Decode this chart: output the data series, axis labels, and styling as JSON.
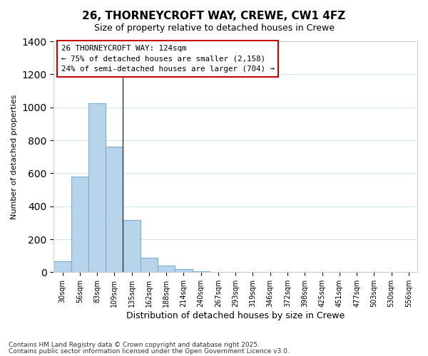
{
  "title": "26, THORNEYCROFT WAY, CREWE, CW1 4FZ",
  "subtitle": "Size of property relative to detached houses in Crewe",
  "xlabel": "Distribution of detached houses by size in Crewe",
  "ylabel": "Number of detached properties",
  "bar_color": "#b8d4ea",
  "bar_edge_color": "#7aafd4",
  "background_color": "#ffffff",
  "grid_color": "#d0e4f4",
  "annotation_box_color": "#ffffff",
  "annotation_border_color": "#cc0000",
  "annotation_line1": "26 THORNEYCROFT WAY: 124sqm",
  "annotation_line2": "← 75% of detached houses are smaller (2,158)",
  "annotation_line3": "24% of semi-detached houses are larger (704) →",
  "footnote1": "Contains HM Land Registry data © Crown copyright and database right 2025.",
  "footnote2": "Contains public sector information licensed under the Open Government Licence v3.0.",
  "bins": [
    "30sqm",
    "56sqm",
    "83sqm",
    "109sqm",
    "135sqm",
    "162sqm",
    "188sqm",
    "214sqm",
    "240sqm",
    "267sqm",
    "293sqm",
    "319sqm",
    "346sqm",
    "372sqm",
    "398sqm",
    "425sqm",
    "451sqm",
    "477sqm",
    "503sqm",
    "530sqm",
    "556sqm"
  ],
  "values": [
    65,
    580,
    1025,
    760,
    315,
    88,
    40,
    20,
    5,
    0,
    0,
    0,
    0,
    0,
    0,
    0,
    0,
    0,
    0,
    0,
    0
  ],
  "ylim": [
    0,
    1400
  ],
  "yticks": [
    0,
    200,
    400,
    600,
    800,
    1000,
    1200,
    1400
  ],
  "vline_x": 3.5
}
